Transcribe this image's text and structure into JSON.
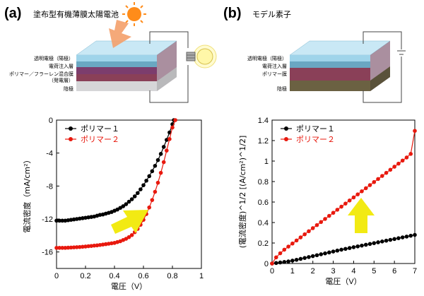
{
  "panel_a": {
    "letter": "(a)",
    "title": "塗布型有機薄膜太陽電池",
    "layers": [
      "透明電極（陽極）",
      "電荷注入層",
      "ポリマー／フラーレン混合膜",
      "（発電層）",
      "陰極"
    ],
    "layer_colors": [
      "#9fd4ea",
      "#6aa7c2",
      "#7c3d6d",
      "#8a4058",
      "#d6d6d8"
    ]
  },
  "panel_b": {
    "letter": "(b)",
    "title": "モデル素子",
    "layers": [
      "透明電極（陽極）",
      "電荷注入層",
      "ポリマー膜",
      "陰極"
    ],
    "layer_colors": [
      "#9fd4ea",
      "#6aa7c2",
      "#8a4058",
      "#6b6142"
    ]
  },
  "chart_data": [
    {
      "type": "scatter",
      "xlabel": "電圧（V）",
      "ylabel": "電流密度（mA/cm²）",
      "xlim": [
        0,
        1
      ],
      "ylim": [
        -18,
        0
      ],
      "xticks": [
        "0",
        "0.2",
        "0.4",
        "0.6",
        "0.8",
        "1"
      ],
      "yticks": [
        "0",
        "-4",
        "-8",
        "-12",
        "-16"
      ],
      "legend_position": "top-left",
      "series": [
        {
          "name": "ポリマー１",
          "color": "#000000",
          "x": [
            0.0,
            0.02,
            0.04,
            0.06,
            0.08,
            0.1,
            0.12,
            0.14,
            0.16,
            0.18,
            0.2,
            0.22,
            0.24,
            0.26,
            0.28,
            0.3,
            0.32,
            0.34,
            0.36,
            0.38,
            0.4,
            0.42,
            0.44,
            0.46,
            0.48,
            0.5,
            0.52,
            0.54,
            0.56,
            0.58,
            0.6,
            0.62,
            0.64,
            0.66,
            0.68,
            0.7,
            0.72,
            0.74,
            0.76,
            0.78,
            0.8,
            0.81
          ],
          "y": [
            -12.2,
            -12.2,
            -12.2,
            -12.2,
            -12.15,
            -12.1,
            -12.05,
            -12.0,
            -11.95,
            -11.9,
            -11.85,
            -11.8,
            -11.75,
            -11.7,
            -11.6,
            -11.5,
            -11.45,
            -11.35,
            -11.25,
            -11.15,
            -11.0,
            -10.85,
            -10.65,
            -10.45,
            -10.2,
            -9.9,
            -9.6,
            -9.25,
            -8.85,
            -8.4,
            -7.9,
            -7.35,
            -6.8,
            -6.2,
            -5.55,
            -4.85,
            -4.1,
            -3.25,
            -2.4,
            -1.5,
            -0.5,
            0.0
          ]
        },
        {
          "name": "ポリマー２",
          "color": "#e8190e",
          "x": [
            0.0,
            0.02,
            0.04,
            0.06,
            0.08,
            0.1,
            0.12,
            0.14,
            0.16,
            0.18,
            0.2,
            0.22,
            0.24,
            0.26,
            0.28,
            0.3,
            0.32,
            0.34,
            0.36,
            0.38,
            0.4,
            0.42,
            0.44,
            0.46,
            0.48,
            0.5,
            0.52,
            0.54,
            0.56,
            0.58,
            0.6,
            0.62,
            0.64,
            0.66,
            0.68,
            0.7,
            0.72,
            0.74,
            0.76,
            0.78,
            0.8,
            0.82
          ],
          "y": [
            -15.5,
            -15.5,
            -15.5,
            -15.5,
            -15.48,
            -15.46,
            -15.44,
            -15.42,
            -15.4,
            -15.37,
            -15.34,
            -15.3,
            -15.27,
            -15.23,
            -15.2,
            -15.15,
            -15.1,
            -15.05,
            -15.0,
            -14.95,
            -14.9,
            -14.8,
            -14.7,
            -14.55,
            -14.4,
            -14.2,
            -13.95,
            -13.6,
            -13.2,
            -12.7,
            -12.1,
            -11.4,
            -10.6,
            -9.7,
            -8.7,
            -7.6,
            -6.4,
            -5.1,
            -3.7,
            -2.3,
            -0.9,
            0.0
          ]
        }
      ]
    },
    {
      "type": "scatter",
      "xlabel": "電圧（V）",
      "ylabel": "(電流密度)^1/2 [(A/cm²)^1/2]",
      "xlim": [
        0,
        7
      ],
      "ylim": [
        0,
        1.4
      ],
      "xticks": [
        "0",
        "1",
        "2",
        "3",
        "4",
        "5",
        "6",
        "7"
      ],
      "yticks": [
        "0",
        "0.2",
        "0.4",
        "0.6",
        "0.8",
        "1",
        "1.2",
        "1.4"
      ],
      "legend_position": "top-left",
      "series": [
        {
          "name": "ポリマー１",
          "color": "#000000",
          "x": [
            0.0,
            0.2,
            0.4,
            0.6,
            0.8,
            1.0,
            1.2,
            1.4,
            1.6,
            1.8,
            2.0,
            2.2,
            2.4,
            2.6,
            2.8,
            3.0,
            3.2,
            3.4,
            3.6,
            3.8,
            4.0,
            4.2,
            4.4,
            4.6,
            4.8,
            5.0,
            5.2,
            5.4,
            5.6,
            5.8,
            6.0,
            6.2,
            6.4,
            6.6,
            6.8,
            7.0
          ],
          "y": [
            0.0,
            0.005,
            0.01,
            0.015,
            0.02,
            0.028,
            0.036,
            0.045,
            0.054,
            0.063,
            0.072,
            0.081,
            0.09,
            0.099,
            0.108,
            0.117,
            0.126,
            0.135,
            0.143,
            0.151,
            0.159,
            0.167,
            0.175,
            0.183,
            0.191,
            0.199,
            0.207,
            0.215,
            0.223,
            0.231,
            0.239,
            0.247,
            0.255,
            0.263,
            0.271,
            0.279
          ]
        },
        {
          "name": "ポリマー２",
          "color": "#e8190e",
          "x": [
            0.0,
            0.2,
            0.4,
            0.6,
            0.8,
            1.0,
            1.2,
            1.4,
            1.6,
            1.8,
            2.0,
            2.2,
            2.4,
            2.6,
            2.8,
            3.0,
            3.2,
            3.4,
            3.6,
            3.8,
            4.0,
            4.2,
            4.4,
            4.6,
            4.8,
            5.0,
            5.2,
            5.4,
            5.6,
            5.8,
            6.0,
            6.2,
            6.4,
            6.6,
            6.8,
            7.0
          ],
          "y": [
            0.0,
            0.06,
            0.1,
            0.135,
            0.165,
            0.195,
            0.225,
            0.255,
            0.285,
            0.315,
            0.345,
            0.375,
            0.405,
            0.435,
            0.465,
            0.495,
            0.525,
            0.555,
            0.585,
            0.615,
            0.645,
            0.675,
            0.705,
            0.735,
            0.765,
            0.795,
            0.825,
            0.855,
            0.885,
            0.915,
            0.945,
            0.975,
            1.005,
            1.035,
            1.07,
            1.295
          ]
        }
      ]
    }
  ]
}
